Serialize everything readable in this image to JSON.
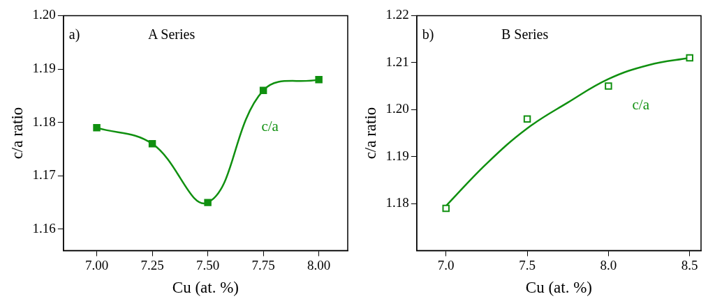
{
  "chart_data": [
    {
      "type": "line",
      "xlabel": "Cu (at. %)",
      "ylabel": "c/a ratio",
      "annotations": [
        "a)",
        "A Series"
      ],
      "marker": "square",
      "grid": false,
      "legend": false,
      "xlim": [
        6.85,
        8.13
      ],
      "xticks": [
        {
          "value": 7,
          "label": "7.00"
        },
        {
          "value": 7.25,
          "label": "7.25"
        },
        {
          "value": 7.5,
          "label": "7.50"
        },
        {
          "value": 7.75,
          "label": "7.75"
        },
        {
          "value": 8,
          "label": "8.00"
        }
      ],
      "ylim": [
        1.156,
        1.2
      ],
      "yticks": [
        {
          "value": 1.16,
          "label": "1.16"
        },
        {
          "value": 1.17,
          "label": "1.17"
        },
        {
          "value": 1.18,
          "label": "1.18"
        },
        {
          "value": 1.19,
          "label": "1.19"
        },
        {
          "value": 1.2,
          "label": "1.20"
        }
      ],
      "series": [
        {
          "name": "c/a",
          "color": "#109010",
          "x": [
            7,
            7.25,
            7.5,
            7.75,
            8
          ],
          "values": [
            1.179,
            1.176,
            1.165,
            1.186,
            1.188
          ]
        }
      ]
    },
    {
      "type": "scatter",
      "xlabel": "Cu (at. %)",
      "ylabel": "c/a ratio",
      "annotations": [
        "b)",
        "B Series"
      ],
      "marker": "square",
      "grid": false,
      "legend": false,
      "xlim": [
        6.82,
        8.57
      ],
      "xticks": [
        {
          "value": 7,
          "label": "7.0"
        },
        {
          "value": 7.5,
          "label": "7.5"
        },
        {
          "value": 8,
          "label": "8.0"
        },
        {
          "value": 8.5,
          "label": "8.5"
        }
      ],
      "ylim": [
        1.17,
        1.22
      ],
      "yticks": [
        1.18,
        1.19,
        {
          "value": 1.2,
          "label": "1.20"
        },
        1.21,
        {
          "value": 1.22,
          "label": "1.22"
        }
      ],
      "series": [
        {
          "name": "c/a",
          "color": "#109010",
          "x": [
            7,
            7.5,
            8,
            8.5
          ],
          "values": [
            1.179,
            1.198,
            1.205,
            1.211
          ]
        },
        {
          "type": "line",
          "color": "#109010",
          "marker": "none",
          "x": [
            7,
            7.25,
            7.5,
            7.75,
            8,
            8.25,
            8.5
          ],
          "values": [
            1.1795,
            1.1885,
            1.196,
            1.2015,
            1.2065,
            1.2095,
            1.211
          ]
        }
      ]
    }
  ]
}
